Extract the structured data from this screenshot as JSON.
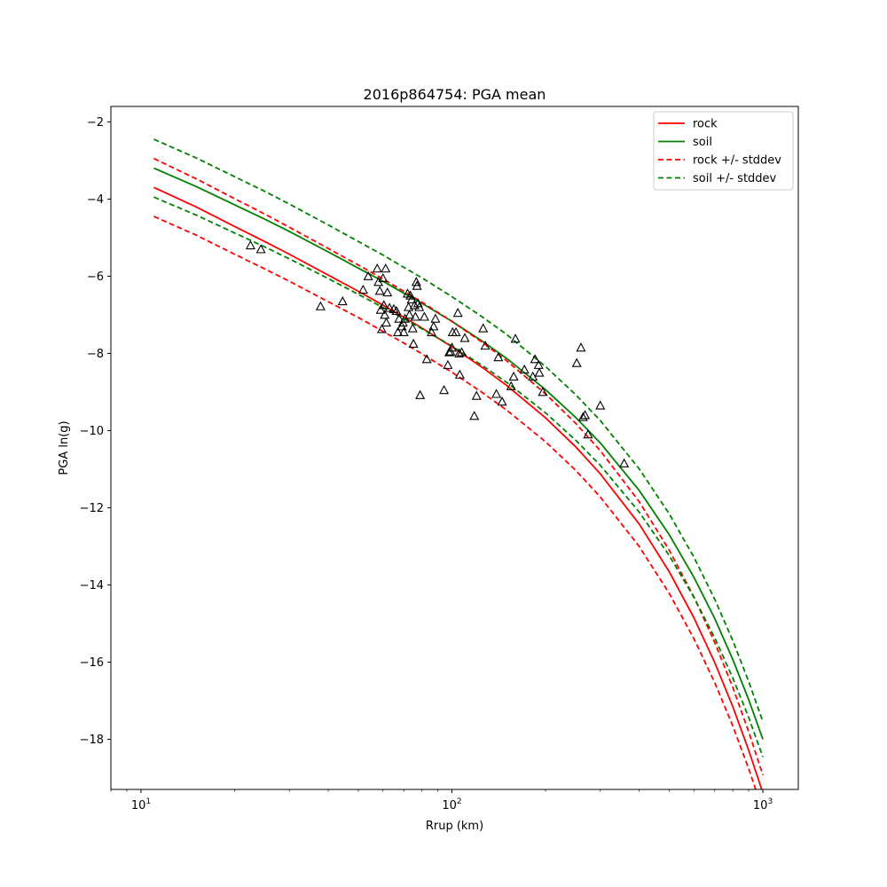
{
  "chart_data": {
    "type": "line",
    "title": "2016p864754: PGA mean",
    "xlabel": "Rrup (km)",
    "ylabel": "PGA ln(g)",
    "xscale": "log",
    "xlim": [
      8.0,
      1300
    ],
    "ylim": [
      -19.3,
      -1.6
    ],
    "x_ticks": [
      {
        "value": 10,
        "base": "10",
        "exp": "1"
      },
      {
        "value": 100,
        "base": "10",
        "exp": "2"
      },
      {
        "value": 1000,
        "base": "10",
        "exp": "3"
      }
    ],
    "y_ticks": [
      -2,
      -4,
      -6,
      -8,
      -10,
      -12,
      -14,
      -16,
      -18
    ],
    "y_tick_labels": [
      "−2",
      "−4",
      "−6",
      "−8",
      "−10",
      "−12",
      "−14",
      "−16",
      "−18"
    ],
    "grid": false,
    "legend_position": "top-right",
    "x": [
      11,
      15,
      20,
      25,
      30,
      40,
      50,
      60,
      70,
      80,
      100,
      125,
      150,
      200,
      250,
      300,
      400,
      500,
      600,
      700,
      800,
      900,
      1000
    ],
    "series": [
      {
        "name": "rock",
        "color": "#ff0000",
        "style": "solid",
        "values": [
          -3.7,
          -4.2,
          -4.71,
          -5.1,
          -5.43,
          -5.97,
          -6.39,
          -6.75,
          -7.06,
          -7.34,
          -7.83,
          -8.36,
          -8.83,
          -9.67,
          -10.42,
          -11.12,
          -12.42,
          -13.66,
          -14.85,
          -16.01,
          -17.15,
          -18.28,
          -19.39
        ]
      },
      {
        "name": "soil",
        "color": "#008000",
        "style": "solid",
        "values": [
          -3.2,
          -3.67,
          -4.15,
          -4.52,
          -4.84,
          -5.37,
          -5.79,
          -6.13,
          -6.44,
          -6.7,
          -7.17,
          -7.68,
          -8.13,
          -8.94,
          -9.66,
          -10.32,
          -11.55,
          -12.7,
          -13.8,
          -14.87,
          -15.93,
          -16.97,
          -18.0
        ]
      },
      {
        "name": "rock +/- stddev",
        "color": "#ff0000",
        "style": "dashed",
        "values": [
          -2.95,
          -3.47,
          -3.99,
          -4.39,
          -4.73,
          -5.28,
          -5.71,
          -6.07,
          -6.39,
          -6.67,
          -7.17,
          -7.71,
          -8.19,
          -9.05,
          -9.81,
          -10.52,
          -11.84,
          -13.1,
          -14.31,
          -15.49,
          -16.65,
          -17.8,
          -18.93
        ]
      },
      {
        "name": "",
        "color": "#ff0000",
        "style": "dashed",
        "values": [
          -4.45,
          -4.93,
          -5.43,
          -5.81,
          -6.13,
          -6.66,
          -7.07,
          -7.43,
          -7.73,
          -8.01,
          -8.49,
          -9.01,
          -9.47,
          -10.29,
          -11.03,
          -11.72,
          -13.0,
          -14.22,
          -15.39,
          -16.53,
          -17.65,
          -18.76,
          -19.85
        ]
      },
      {
        "name": "soil +/- stddev",
        "color": "#008000",
        "style": "dashed",
        "values": [
          -2.45,
          -2.93,
          -3.42,
          -3.8,
          -4.13,
          -4.67,
          -5.1,
          -5.45,
          -5.77,
          -6.04,
          -6.53,
          -7.05,
          -7.51,
          -8.34,
          -9.07,
          -9.74,
          -10.99,
          -12.16,
          -13.28,
          -14.37,
          -15.44,
          -16.5,
          -17.54
        ]
      },
      {
        "name": "",
        "color": "#008000",
        "style": "dashed",
        "values": [
          -3.95,
          -4.41,
          -4.88,
          -5.24,
          -5.55,
          -6.06,
          -6.47,
          -6.81,
          -7.1,
          -7.36,
          -7.81,
          -8.31,
          -8.75,
          -9.54,
          -10.25,
          -10.9,
          -12.11,
          -13.24,
          -14.32,
          -15.37,
          -16.41,
          -17.43,
          -18.46
        ]
      }
    ],
    "observations": [
      {
        "x": 22.5,
        "y": -5.2
      },
      {
        "x": 24.3,
        "y": -5.3
      },
      {
        "x": 37.8,
        "y": -6.78
      },
      {
        "x": 44.5,
        "y": -6.65
      },
      {
        "x": 51.8,
        "y": -6.35
      },
      {
        "x": 53.8,
        "y": -6.0
      },
      {
        "x": 57.5,
        "y": -5.8
      },
      {
        "x": 58.0,
        "y": -6.15
      },
      {
        "x": 58.6,
        "y": -6.38
      },
      {
        "x": 59.0,
        "y": -6.87
      },
      {
        "x": 59.5,
        "y": -7.37
      },
      {
        "x": 60.0,
        "y": -6.05
      },
      {
        "x": 60.4,
        "y": -6.75
      },
      {
        "x": 60.8,
        "y": -7.0
      },
      {
        "x": 61.2,
        "y": -5.8
      },
      {
        "x": 61.5,
        "y": -7.2
      },
      {
        "x": 62.0,
        "y": -6.42
      },
      {
        "x": 63.0,
        "y": -6.82
      },
      {
        "x": 65.0,
        "y": -6.85
      },
      {
        "x": 66.3,
        "y": -6.9
      },
      {
        "x": 67.0,
        "y": -7.45
      },
      {
        "x": 67.6,
        "y": -7.1
      },
      {
        "x": 69.0,
        "y": -7.3
      },
      {
        "x": 69.6,
        "y": -7.2
      },
      {
        "x": 70.0,
        "y": -7.45
      },
      {
        "x": 70.6,
        "y": -7.1
      },
      {
        "x": 72.0,
        "y": -6.45
      },
      {
        "x": 72.5,
        "y": -6.8
      },
      {
        "x": 73.0,
        "y": -7.0
      },
      {
        "x": 73.5,
        "y": -6.5
      },
      {
        "x": 74.2,
        "y": -6.6
      },
      {
        "x": 74.8,
        "y": -7.35
      },
      {
        "x": 75.2,
        "y": -7.75
      },
      {
        "x": 75.8,
        "y": -6.75
      },
      {
        "x": 76.3,
        "y": -7.05
      },
      {
        "x": 76.8,
        "y": -6.15
      },
      {
        "x": 77.2,
        "y": -6.25
      },
      {
        "x": 77.8,
        "y": -6.7
      },
      {
        "x": 78.5,
        "y": -6.8
      },
      {
        "x": 79.0,
        "y": -9.08
      },
      {
        "x": 81.5,
        "y": -7.05
      },
      {
        "x": 83.0,
        "y": -8.15
      },
      {
        "x": 86.0,
        "y": -7.45
      },
      {
        "x": 87.3,
        "y": -7.3
      },
      {
        "x": 88.5,
        "y": -7.1
      },
      {
        "x": 94.3,
        "y": -8.95
      },
      {
        "x": 97.0,
        "y": -8.3
      },
      {
        "x": 98.0,
        "y": -7.97
      },
      {
        "x": 99.0,
        "y": -7.95
      },
      {
        "x": 100.0,
        "y": -7.85
      },
      {
        "x": 100.5,
        "y": -7.45
      },
      {
        "x": 103.0,
        "y": -7.45
      },
      {
        "x": 104.5,
        "y": -6.95
      },
      {
        "x": 105.5,
        "y": -8.0
      },
      {
        "x": 106.0,
        "y": -8.55
      },
      {
        "x": 107.5,
        "y": -7.97
      },
      {
        "x": 110.0,
        "y": -7.6
      },
      {
        "x": 118.0,
        "y": -9.62
      },
      {
        "x": 120.0,
        "y": -9.1
      },
      {
        "x": 126.0,
        "y": -7.35
      },
      {
        "x": 128.0,
        "y": -7.8
      },
      {
        "x": 139.0,
        "y": -9.05
      },
      {
        "x": 141.0,
        "y": -8.1
      },
      {
        "x": 145.0,
        "y": -9.25
      },
      {
        "x": 155.0,
        "y": -8.85
      },
      {
        "x": 158.0,
        "y": -8.6
      },
      {
        "x": 160.0,
        "y": -7.62
      },
      {
        "x": 171.0,
        "y": -8.42
      },
      {
        "x": 182.0,
        "y": -8.6
      },
      {
        "x": 185.0,
        "y": -8.15
      },
      {
        "x": 190.0,
        "y": -8.3
      },
      {
        "x": 191.0,
        "y": -8.5
      },
      {
        "x": 196.0,
        "y": -9.0
      },
      {
        "x": 252.0,
        "y": -8.25
      },
      {
        "x": 260.0,
        "y": -7.85
      },
      {
        "x": 264.0,
        "y": -9.65
      },
      {
        "x": 268.0,
        "y": -9.6
      },
      {
        "x": 274.0,
        "y": -10.1
      },
      {
        "x": 300.0,
        "y": -9.35
      },
      {
        "x": 358.0,
        "y": -10.85
      }
    ]
  }
}
